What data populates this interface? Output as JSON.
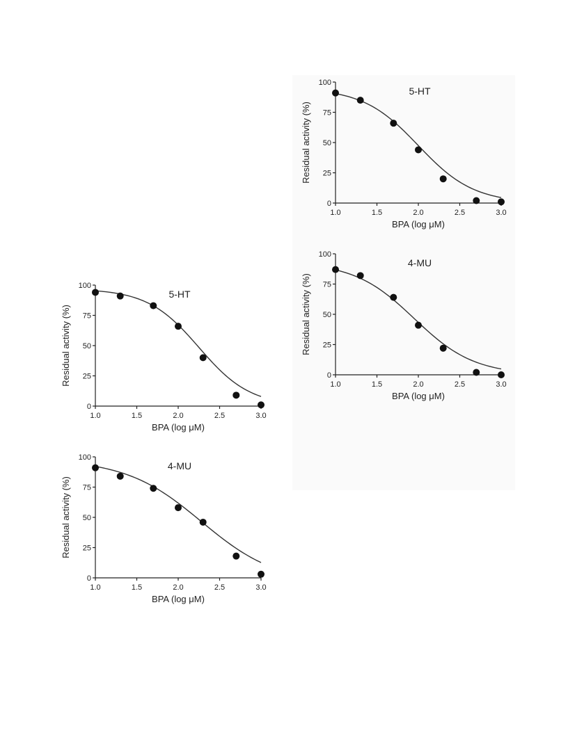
{
  "chart_data": [
    {
      "type": "scatter",
      "title": "5-HT",
      "xlabel": "BPA (log μM)",
      "ylabel": "Residual activity (%)",
      "xlim": [
        1.0,
        3.0
      ],
      "ylim": [
        0,
        100
      ],
      "xticks": [
        "1.0",
        "1.5",
        "2.0",
        "2.5",
        "3.0"
      ],
      "yticks": [
        "0",
        "25",
        "50",
        "75",
        "100"
      ],
      "x": [
        1.0,
        1.3,
        1.7,
        2.0,
        2.3,
        2.7,
        3.0
      ],
      "y": [
        91,
        85,
        66,
        44,
        20,
        2,
        1
      ],
      "fit": {
        "top": 95,
        "bottom": 0,
        "logIC50": 2.0,
        "hill": -1.3
      }
    },
    {
      "type": "scatter",
      "title": "4-MU",
      "xlabel": "BPA (log μM)",
      "ylabel": "Residual activity (%)",
      "xlim": [
        1.0,
        3.0
      ],
      "ylim": [
        0,
        100
      ],
      "xticks": [
        "1.0",
        "1.5",
        "2.0",
        "2.5",
        "3.0"
      ],
      "yticks": [
        "0",
        "25",
        "50",
        "75",
        "100"
      ],
      "x": [
        1.0,
        1.3,
        1.7,
        2.0,
        2.3,
        2.7,
        3.0
      ],
      "y": [
        87,
        82,
        64,
        41,
        22,
        2,
        0
      ],
      "fit": {
        "top": 93,
        "bottom": 0,
        "logIC50": 1.95,
        "hill": -1.2
      }
    },
    {
      "type": "scatter",
      "title": "5-HT",
      "xlabel": "BPA (log μM)",
      "ylabel": "Residual activity (%)",
      "xlim": [
        1.0,
        3.0
      ],
      "ylim": [
        0,
        100
      ],
      "xticks": [
        "1.0",
        "1.5",
        "2.0",
        "2.5",
        "3.0"
      ],
      "yticks": [
        "0",
        "25",
        "50",
        "75",
        "100"
      ],
      "x": [
        1.0,
        1.3,
        1.7,
        2.0,
        2.3,
        2.7,
        3.0
      ],
      "y": [
        94,
        91,
        83,
        66,
        40,
        9,
        1
      ],
      "fit": {
        "top": 97,
        "bottom": 0,
        "logIC50": 2.25,
        "hill": -1.4
      }
    },
    {
      "type": "scatter",
      "title": "4-MU",
      "xlabel": "BPA (log μM)",
      "ylabel": "Residual activity (%)",
      "xlim": [
        1.0,
        3.0
      ],
      "ylim": [
        0,
        100
      ],
      "xticks": [
        "1.0",
        "1.5",
        "2.0",
        "2.5",
        "3.0"
      ],
      "yticks": [
        "0",
        "25",
        "50",
        "75",
        "100"
      ],
      "x": [
        1.0,
        1.3,
        1.7,
        2.0,
        2.3,
        2.7,
        3.0
      ],
      "y": [
        91,
        84,
        74,
        58,
        46,
        18,
        3
      ],
      "fit": {
        "top": 98,
        "bottom": -5,
        "logIC50": 2.28,
        "hill": -0.95
      }
    }
  ]
}
